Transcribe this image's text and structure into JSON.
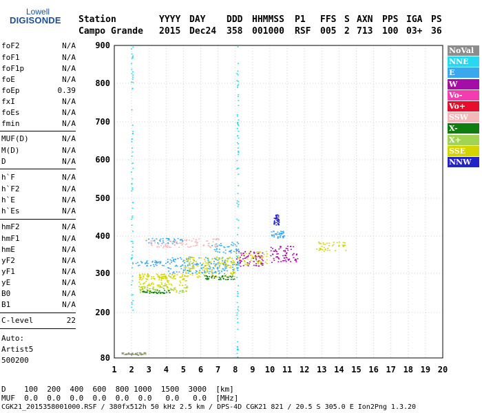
{
  "logo": {
    "line1": "Lowell",
    "line2": "DIGISONDE"
  },
  "header": {
    "row1": [
      "Station",
      "YYYY",
      "DAY",
      "DDD",
      "HHMMSS",
      "P1",
      "FFS",
      "S",
      "AXN",
      "PPS",
      "IGA",
      "PS"
    ],
    "row2": [
      "Campo Grande",
      "2015",
      "Dec24",
      "358",
      "001000",
      "RSF",
      "005",
      "2",
      "713",
      "100",
      "03+",
      "36"
    ]
  },
  "params": {
    "group1": [
      {
        "name": "foF2",
        "value": "N/A"
      },
      {
        "name": "foF1",
        "value": "N/A"
      },
      {
        "name": "foF1p",
        "value": "N/A"
      },
      {
        "name": "foE",
        "value": "N/A"
      },
      {
        "name": "foEp",
        "value": "0.39"
      },
      {
        "name": "fxI",
        "value": "N/A"
      },
      {
        "name": "foEs",
        "value": "N/A"
      },
      {
        "name": "fmin",
        "value": "N/A"
      }
    ],
    "group2": [
      {
        "name": "MUF(D)",
        "value": "N/A"
      },
      {
        "name": "M(D)",
        "value": "N/A"
      },
      {
        "name": "D",
        "value": "N/A"
      }
    ],
    "group3": [
      {
        "name": "h`F",
        "value": "N/A"
      },
      {
        "name": "h`F2",
        "value": "N/A"
      },
      {
        "name": "h`E",
        "value": "N/A"
      },
      {
        "name": "h`Es",
        "value": "N/A"
      }
    ],
    "group4": [
      {
        "name": "hmF2",
        "value": "N/A"
      },
      {
        "name": "hmF1",
        "value": "N/A"
      },
      {
        "name": "hmE",
        "value": "N/A"
      },
      {
        "name": "yF2",
        "value": "N/A"
      },
      {
        "name": "yF1",
        "value": "N/A"
      },
      {
        "name": "yE",
        "value": "N/A"
      },
      {
        "name": "B0",
        "value": "N/A"
      },
      {
        "name": "B1",
        "value": "N/A"
      }
    ],
    "clevel": {
      "name": "C-level",
      "value": "22"
    }
  },
  "scaling": {
    "line1": "Auto:",
    "line2": "Artist5",
    "line3": "500200"
  },
  "legend": [
    {
      "label": "NoVal",
      "color": "#8c8c8c"
    },
    {
      "label": "NNE",
      "color": "#27d8f0"
    },
    {
      "label": "E",
      "color": "#3aa8ec"
    },
    {
      "label": "W",
      "color": "#a60ca6"
    },
    {
      "label": "Vo-",
      "color": "#f23cb0"
    },
    {
      "label": "Vo+",
      "color": "#e60e2c"
    },
    {
      "label": "SSW",
      "color": "#f5b8b8"
    },
    {
      "label": "X-",
      "color": "#0f7d0f"
    },
    {
      "label": "X+",
      "color": "#a0d452"
    },
    {
      "label": "SSE",
      "color": "#d4d400"
    },
    {
      "label": "NNW",
      "color": "#2323c8"
    }
  ],
  "footer": {
    "d_row": "D    100  200  400  600  800 1000  1500  3000  [km]",
    "muf_row": "MUF  0.0  0.0  0.0  0.0  0.0  0.0   0.0   0.0  [MHz]",
    "info": "CGK21_2015358001000.RSF / 380fx512h 50 kHz 2.5 km / DPS-4D CGK21 821 / 20.5 S 305.0 E Ion2Png 1.3.20"
  },
  "chart_data": {
    "type": "scatter",
    "title": "",
    "xlabel": "",
    "ylabel": "",
    "xlim": [
      1,
      20
    ],
    "ylim": [
      80,
      900
    ],
    "x_ticks": [
      1,
      2,
      3,
      4,
      5,
      6,
      7,
      8,
      9,
      10,
      11,
      12,
      13,
      14,
      15,
      16,
      17,
      18,
      19,
      20
    ],
    "y_ticks": [
      80,
      200,
      300,
      400,
      500,
      600,
      700,
      800,
      900
    ],
    "grid": true,
    "x_unit": "MHz",
    "y_unit": "km",
    "series": [
      {
        "name": "E",
        "color": "#3aa8ec",
        "segments": [
          {
            "x": [
              2.0,
              4.0
            ],
            "y": [
              320,
              335
            ]
          },
          {
            "x": [
              4.0,
              8.2
            ],
            "y": [
              300,
              345
            ]
          },
          {
            "x": [
              2.8,
              5.0
            ],
            "y": [
              380,
              395
            ]
          },
          {
            "x": [
              6.6,
              8.2
            ],
            "y": [
              355,
              385
            ]
          },
          {
            "x": [
              10.0,
              10.8
            ],
            "y": [
              395,
              415
            ]
          }
        ]
      },
      {
        "name": "SSE",
        "color": "#d4d400",
        "segments": [
          {
            "x": [
              2.4,
              5.2
            ],
            "y": [
              255,
              300
            ]
          },
          {
            "x": [
              2.4,
              4.6
            ],
            "y": [
              285,
              300
            ]
          },
          {
            "x": [
              5.0,
              8.0
            ],
            "y": [
              290,
              345
            ]
          },
          {
            "x": [
              8.0,
              9.8
            ],
            "y": [
              320,
              360
            ]
          },
          {
            "x": [
              12.6,
              14.4
            ],
            "y": [
              360,
              385
            ]
          }
        ]
      },
      {
        "name": "W",
        "color": "#a60ca6",
        "segments": [
          {
            "x": [
              8.0,
              9.6
            ],
            "y": [
              320,
              360
            ]
          },
          {
            "x": [
              10.0,
              11.6
            ],
            "y": [
              330,
              375
            ]
          }
        ]
      },
      {
        "name": "X+",
        "color": "#a0d452",
        "segments": [
          {
            "x": [
              2.4,
              5.2
            ],
            "y": [
              250,
              270
            ]
          },
          {
            "x": [
              1.5,
              2.8
            ],
            "y": [
              90,
              92
            ]
          }
        ]
      },
      {
        "name": "X-",
        "color": "#0f7d0f",
        "segments": [
          {
            "x": [
              2.6,
              4.2
            ],
            "y": [
              250,
              258
            ]
          },
          {
            "x": [
              6.2,
              8.0
            ],
            "y": [
              285,
              295
            ]
          }
        ]
      },
      {
        "name": "NNE",
        "color": "#27d8f0",
        "segments": [
          {
            "x": [
              1.95,
              2.05
            ],
            "y": [
              200,
              900
            ]
          },
          {
            "x": [
              8.05,
              8.15
            ],
            "y": [
              80,
              900
            ]
          }
        ]
      },
      {
        "name": "NNW",
        "color": "#2323c8",
        "segments": [
          {
            "x": [
              10.2,
              10.5
            ],
            "y": [
              430,
              460
            ]
          }
        ]
      },
      {
        "name": "SSW",
        "color": "#f5b8b8",
        "segments": [
          {
            "x": [
              3.0,
              7.0
            ],
            "y": [
              370,
              395
            ]
          }
        ]
      },
      {
        "name": "NoVal",
        "color": "#8c8c8c",
        "segments": [
          {
            "x": [
              1.4,
              2.8
            ],
            "y": [
              88,
              95
            ]
          }
        ]
      }
    ]
  }
}
